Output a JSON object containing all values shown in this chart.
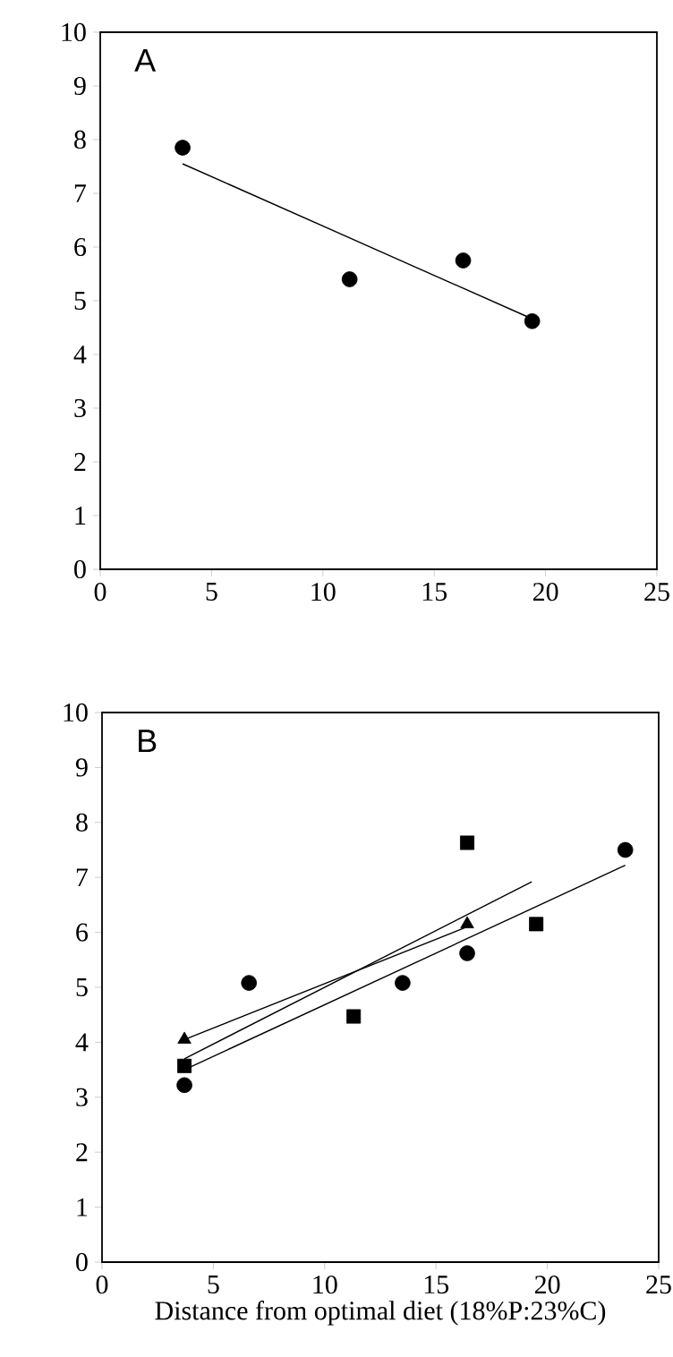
{
  "chart_data": [
    {
      "type": "scatter",
      "xlim": [
        0,
        25
      ],
      "ylim": [
        0,
        10
      ],
      "xticks": [
        0,
        5,
        10,
        15,
        20,
        25
      ],
      "yticks": [
        0,
        1,
        2,
        3,
        4,
        5,
        6,
        7,
        8,
        9,
        10
      ],
      "annotations": [
        "A"
      ],
      "series": [
        {
          "marker": "circle",
          "color": "#000000",
          "x": [
            3.7,
            11.2,
            16.3,
            19.4
          ],
          "values": [
            7.85,
            5.4,
            5.75,
            4.62
          ]
        },
        {
          "type": "line",
          "marker": "none",
          "color": "#000000",
          "x": [
            3.7,
            19.2
          ],
          "values": [
            7.55,
            4.7
          ]
        }
      ]
    },
    {
      "type": "scatter",
      "xlim": [
        0,
        25
      ],
      "ylim": [
        0,
        10
      ],
      "xticks": [
        0,
        5,
        10,
        15,
        20,
        25
      ],
      "yticks": [
        0,
        1,
        2,
        3,
        4,
        5,
        6,
        7,
        8,
        9,
        10
      ],
      "annotations": [
        "B"
      ],
      "xlabel": "Distance from optimal diet (18%P:23%C)",
      "series": [
        {
          "marker": "circle",
          "color": "#000000",
          "x": [
            3.7,
            6.6,
            13.5,
            16.4,
            23.5
          ],
          "values": [
            3.22,
            5.08,
            5.08,
            5.62,
            7.5
          ]
        },
        {
          "marker": "square",
          "color": "#000000",
          "x": [
            3.7,
            11.3,
            16.4,
            19.5
          ],
          "values": [
            3.57,
            4.47,
            7.63,
            6.15
          ]
        },
        {
          "marker": "triangle",
          "color": "#000000",
          "x": [
            3.7,
            16.4
          ],
          "values": [
            4.05,
            6.15
          ]
        },
        {
          "type": "line",
          "marker": "none",
          "color": "#000000",
          "x": [
            3.7,
            23.5
          ],
          "values": [
            3.5,
            7.22
          ]
        },
        {
          "type": "line",
          "marker": "none",
          "color": "#000000",
          "x": [
            3.7,
            19.3
          ],
          "values": [
            3.7,
            6.92
          ]
        },
        {
          "type": "line",
          "marker": "none",
          "color": "#000000",
          "x": [
            3.7,
            16.4
          ],
          "values": [
            4.05,
            6.1
          ]
        }
      ]
    }
  ]
}
